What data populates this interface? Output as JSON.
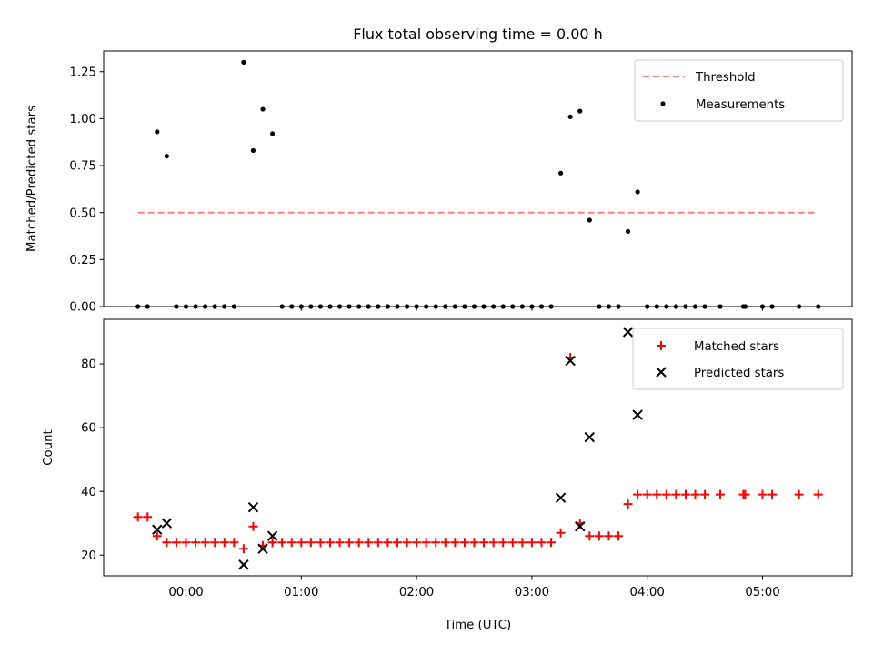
{
  "chart_data": [
    {
      "type": "scatter",
      "title": "Flux total observing time = 0.00 h",
      "xlabel": "",
      "ylabel": "Matched/Predicted stars",
      "ylim": [
        0,
        1.36
      ],
      "yticks": [
        "0.00",
        "0.25",
        "0.50",
        "0.75",
        "1.00",
        "1.25"
      ],
      "grid": false,
      "legend_position": "top-right",
      "series": [
        {
          "name": "Threshold",
          "kind": "line",
          "style": "dashed",
          "color": "#ff7f7f",
          "x": [
            "23:35",
            "05:28"
          ],
          "y": [
            0.5,
            0.5
          ]
        },
        {
          "name": "Measurements",
          "kind": "scatter",
          "marker": "dot",
          "color": "#000000",
          "x": [
            "23:35",
            "23:40",
            "23:45",
            "23:50",
            "23:55",
            "00:00",
            "00:05",
            "00:10",
            "00:15",
            "00:20",
            "00:25",
            "00:30",
            "00:35",
            "00:40",
            "00:45",
            "00:50",
            "00:55",
            "01:00",
            "01:05",
            "01:10",
            "01:15",
            "01:20",
            "01:25",
            "01:30",
            "01:35",
            "01:40",
            "01:45",
            "01:50",
            "01:55",
            "02:00",
            "02:05",
            "02:10",
            "02:15",
            "02:20",
            "02:25",
            "02:30",
            "02:35",
            "02:40",
            "02:45",
            "02:50",
            "02:55",
            "03:00",
            "03:05",
            "03:10",
            "03:15",
            "03:20",
            "03:25",
            "03:30",
            "03:35",
            "03:40",
            "03:45",
            "03:50",
            "03:55",
            "04:00",
            "04:05",
            "04:10",
            "04:15",
            "04:20",
            "04:25",
            "04:30",
            "04:38",
            "04:50",
            "04:51",
            "05:00",
            "05:05",
            "05:19",
            "05:29"
          ],
          "y": [
            0,
            0,
            0.93,
            0.8,
            0,
            0,
            0,
            0,
            0,
            0,
            0,
            1.3,
            0.83,
            1.05,
            0.92,
            0,
            0,
            0,
            0,
            0,
            0,
            0,
            0,
            0,
            0,
            0,
            0,
            0,
            0,
            0,
            0,
            0,
            0,
            0,
            0,
            0,
            0,
            0,
            0,
            0,
            0,
            0,
            0,
            0,
            0.71,
            1.01,
            1.04,
            0.46,
            0,
            0,
            0,
            0.4,
            0.61,
            0,
            0,
            0,
            0,
            0,
            0,
            0,
            0,
            0,
            0,
            0,
            0,
            0,
            0
          ]
        }
      ]
    },
    {
      "type": "scatter",
      "title": "",
      "xlabel": "Time (UTC)",
      "ylabel": "Count",
      "ylim": [
        13.5,
        94
      ],
      "yticks": [
        "20",
        "40",
        "60",
        "80"
      ],
      "xticks": [
        "00:00",
        "01:00",
        "02:00",
        "03:00",
        "04:00",
        "05:00"
      ],
      "grid": false,
      "legend_position": "top-right",
      "series": [
        {
          "name": "Matched stars",
          "kind": "scatter",
          "marker": "plus",
          "color": "#ff0000",
          "x": [
            "23:35",
            "23:40",
            "23:45",
            "23:50",
            "23:55",
            "00:00",
            "00:05",
            "00:10",
            "00:15",
            "00:20",
            "00:25",
            "00:30",
            "00:35",
            "00:40",
            "00:45",
            "00:50",
            "00:55",
            "01:00",
            "01:05",
            "01:10",
            "01:15",
            "01:20",
            "01:25",
            "01:30",
            "01:35",
            "01:40",
            "01:45",
            "01:50",
            "01:55",
            "02:00",
            "02:05",
            "02:10",
            "02:15",
            "02:20",
            "02:25",
            "02:30",
            "02:35",
            "02:40",
            "02:45",
            "02:50",
            "02:55",
            "03:00",
            "03:05",
            "03:10",
            "03:15",
            "03:20",
            "03:25",
            "03:30",
            "03:35",
            "03:40",
            "03:45",
            "03:50",
            "03:55",
            "04:00",
            "04:05",
            "04:10",
            "04:15",
            "04:20",
            "04:25",
            "04:30",
            "04:38",
            "04:50",
            "04:51",
            "05:00",
            "05:05",
            "05:19",
            "05:29"
          ],
          "y": [
            32,
            32,
            26,
            24,
            24,
            24,
            24,
            24,
            24,
            24,
            24,
            22,
            29,
            23,
            24,
            24,
            24,
            24,
            24,
            24,
            24,
            24,
            24,
            24,
            24,
            24,
            24,
            24,
            24,
            24,
            24,
            24,
            24,
            24,
            24,
            24,
            24,
            24,
            24,
            24,
            24,
            24,
            24,
            24,
            27,
            82,
            30,
            26,
            26,
            26,
            26,
            36,
            39,
            39,
            39,
            39,
            39,
            39,
            39,
            39,
            39,
            39,
            39,
            39,
            39,
            39,
            39
          ]
        },
        {
          "name": "Predicted stars",
          "kind": "scatter",
          "marker": "x",
          "color": "#000000",
          "x": [
            "23:45",
            "23:50",
            "00:30",
            "00:35",
            "00:40",
            "00:45",
            "03:15",
            "03:20",
            "03:25",
            "03:30",
            "03:50",
            "03:55"
          ],
          "y": [
            28,
            30,
            17,
            35,
            22,
            26,
            38,
            81,
            29,
            57,
            90,
            64
          ]
        }
      ]
    }
  ]
}
